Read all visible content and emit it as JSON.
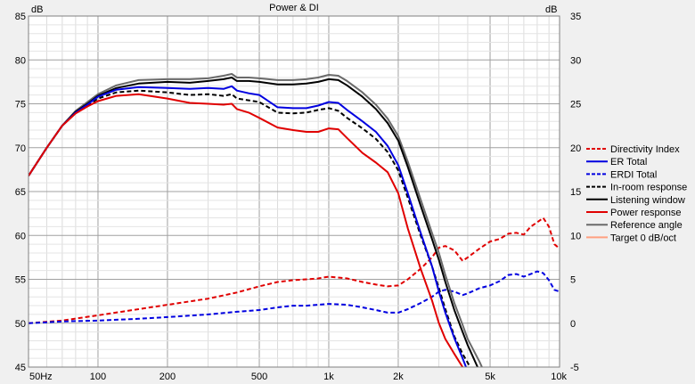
{
  "chart_data": {
    "type": "line",
    "title": "Power & DI",
    "left_unit": "dB",
    "right_unit": "dB",
    "x_scale": "log",
    "x_range": [
      50,
      10000
    ],
    "x_tick_labels": [
      {
        "x": 50,
        "label": "50Hz"
      },
      {
        "x": 100,
        "label": "100"
      },
      {
        "x": 200,
        "label": "200"
      },
      {
        "x": 500,
        "label": "500"
      },
      {
        "x": 1000,
        "label": "1k"
      },
      {
        "x": 2000,
        "label": "2k"
      },
      {
        "x": 5000,
        "label": "5k"
      },
      {
        "x": 10000,
        "label": "10k"
      }
    ],
    "y_left_range": [
      45,
      85
    ],
    "y_left_ticks": [
      45,
      50,
      55,
      60,
      65,
      70,
      75,
      80,
      85
    ],
    "y_right_range": [
      -5,
      35
    ],
    "y_right_ticks": [
      -5,
      0,
      5,
      10,
      15,
      20,
      25,
      30,
      35
    ],
    "grid": true,
    "legend_placement": "right",
    "series": [
      {
        "name": "Directivity Index",
        "axis": "right",
        "color": "#e00000",
        "dash": true,
        "x": [
          50,
          70,
          100,
          150,
          200,
          300,
          400,
          500,
          600,
          700,
          800,
          900,
          1000,
          1200,
          1400,
          1600,
          1800,
          2000,
          2200,
          2500,
          2800,
          3000,
          3200,
          3500,
          3800,
          4000,
          4500,
          5000,
          5500,
          6000,
          6500,
          7000,
          7500,
          8000,
          8500,
          9000,
          9500,
          10000
        ],
        "y": [
          0,
          0.3,
          0.9,
          1.6,
          2.1,
          2.8,
          3.5,
          4.2,
          4.7,
          4.9,
          5.0,
          5.1,
          5.3,
          5.1,
          4.7,
          4.4,
          4.2,
          4.3,
          5.0,
          6.2,
          7.5,
          8.6,
          8.8,
          8.3,
          7.1,
          7.5,
          8.5,
          9.3,
          9.6,
          10.2,
          10.3,
          10.1,
          11.0,
          11.5,
          12.0,
          11.0,
          9.0,
          8.5
        ]
      },
      {
        "name": "ER Total",
        "axis": "left",
        "color": "#0000e0",
        "dash": false,
        "x": [
          50,
          60,
          70,
          80,
          90,
          100,
          120,
          150,
          200,
          250,
          300,
          350,
          380,
          400,
          450,
          500,
          600,
          700,
          800,
          900,
          1000,
          1100,
          1200,
          1400,
          1600,
          1800,
          2000,
          2200,
          2500,
          2800,
          3000,
          3200,
          3500,
          3800,
          4000
        ],
        "y": [
          66.8,
          70.0,
          72.5,
          74.0,
          74.9,
          75.8,
          76.6,
          76.9,
          76.8,
          76.7,
          76.8,
          76.7,
          77.0,
          76.5,
          76.2,
          76.0,
          74.6,
          74.5,
          74.5,
          74.8,
          75.2,
          75.1,
          74.3,
          73.0,
          71.8,
          70.2,
          68.0,
          64.8,
          60.3,
          56.5,
          53.6,
          51.2,
          48.3,
          46.0,
          44.5
        ]
      },
      {
        "name": "ERDI Total",
        "axis": "right",
        "color": "#0000e0",
        "dash": true,
        "x": [
          50,
          70,
          100,
          150,
          200,
          300,
          400,
          500,
          600,
          700,
          800,
          900,
          1000,
          1200,
          1400,
          1600,
          1800,
          2000,
          2200,
          2500,
          2800,
          3000,
          3200,
          3500,
          3800,
          4000,
          4500,
          5000,
          5500,
          6000,
          6500,
          7000,
          7500,
          8000,
          8500,
          9000,
          9500,
          10000
        ],
        "y": [
          0,
          0.2,
          0.3,
          0.5,
          0.7,
          1.0,
          1.3,
          1.5,
          1.8,
          2.0,
          2.0,
          2.1,
          2.2,
          2.1,
          1.8,
          1.5,
          1.2,
          1.2,
          1.6,
          2.3,
          3.0,
          3.6,
          3.8,
          3.6,
          3.2,
          3.4,
          4.0,
          4.3,
          4.8,
          5.5,
          5.6,
          5.3,
          5.6,
          5.9,
          5.7,
          4.9,
          3.8,
          3.6
        ]
      },
      {
        "name": "In-room response",
        "axis": "left",
        "color": "#000000",
        "dash": true,
        "x": [
          50,
          60,
          70,
          80,
          90,
          100,
          120,
          150,
          200,
          250,
          300,
          350,
          380,
          400,
          450,
          500,
          600,
          700,
          800,
          900,
          1000,
          1100,
          1200,
          1400,
          1600,
          1800,
          2000,
          2200,
          2500,
          2800,
          3000,
          3200,
          3500,
          3800,
          4000,
          4300
        ],
        "y": [
          66.8,
          70.0,
          72.5,
          74.0,
          74.8,
          75.6,
          76.3,
          76.5,
          76.3,
          76.0,
          76.1,
          75.9,
          76.1,
          75.6,
          75.4,
          75.2,
          74.0,
          73.9,
          74.0,
          74.3,
          74.5,
          74.2,
          73.4,
          72.2,
          71.0,
          69.5,
          67.4,
          64.3,
          60.0,
          56.5,
          54.0,
          51.6,
          48.5,
          46.5,
          45.5,
          44.0
        ]
      },
      {
        "name": "Listening window",
        "axis": "left",
        "color": "#000000",
        "dash": false,
        "x": [
          50,
          60,
          70,
          80,
          90,
          100,
          120,
          150,
          200,
          250,
          300,
          350,
          380,
          400,
          450,
          500,
          600,
          700,
          800,
          900,
          1000,
          1100,
          1200,
          1400,
          1600,
          1800,
          2000,
          2200,
          2500,
          2800,
          3000,
          3200,
          3500,
          3800,
          4000,
          4500
        ],
        "y": [
          66.8,
          70.0,
          72.5,
          74.1,
          75.0,
          75.9,
          76.8,
          77.3,
          77.5,
          77.4,
          77.6,
          77.8,
          78.0,
          77.6,
          77.6,
          77.5,
          77.2,
          77.2,
          77.3,
          77.5,
          77.8,
          77.7,
          77.1,
          75.8,
          74.4,
          72.8,
          70.8,
          67.8,
          63.4,
          59.6,
          57.2,
          54.7,
          51.5,
          49.0,
          47.5,
          44.5
        ]
      },
      {
        "name": "Power response",
        "axis": "left",
        "color": "#e00000",
        "dash": false,
        "x": [
          50,
          60,
          70,
          80,
          90,
          100,
          120,
          150,
          200,
          250,
          300,
          350,
          380,
          400,
          450,
          500,
          600,
          700,
          800,
          900,
          1000,
          1100,
          1200,
          1400,
          1600,
          1800,
          2000,
          2200,
          2500,
          2800,
          3000,
          3200,
          3500,
          3800
        ],
        "y": [
          66.8,
          70.0,
          72.5,
          73.9,
          74.7,
          75.3,
          75.9,
          76.1,
          75.6,
          75.1,
          75.0,
          74.9,
          75.0,
          74.4,
          74.0,
          73.4,
          72.3,
          72.0,
          71.8,
          71.8,
          72.2,
          72.1,
          71.1,
          69.4,
          68.3,
          67.2,
          64.8,
          60.8,
          56.2,
          52.6,
          50.0,
          48.2,
          46.5,
          45.0
        ]
      },
      {
        "name": "Reference angle",
        "axis": "left",
        "color": "#6a6a6a",
        "dash": false,
        "x": [
          50,
          60,
          70,
          80,
          90,
          100,
          120,
          150,
          200,
          250,
          300,
          350,
          380,
          400,
          450,
          500,
          600,
          700,
          800,
          900,
          1000,
          1100,
          1200,
          1400,
          1600,
          1800,
          2000,
          2200,
          2500,
          2800,
          3000,
          3200,
          3500,
          3800,
          4000,
          4500,
          4700
        ],
        "y": [
          66.8,
          70.0,
          72.5,
          74.2,
          75.2,
          76.1,
          77.1,
          77.7,
          77.8,
          77.8,
          77.9,
          78.2,
          78.4,
          78.0,
          78.0,
          77.9,
          77.7,
          77.7,
          77.8,
          78.0,
          78.3,
          78.2,
          77.6,
          76.3,
          74.9,
          73.3,
          71.3,
          68.4,
          64.1,
          60.3,
          58.0,
          55.5,
          52.3,
          49.8,
          48.2,
          45.6,
          44.5
        ]
      },
      {
        "name": "Target 0 dB/oct",
        "axis": "left",
        "color": "#ffa080",
        "dash": false,
        "x": [],
        "y": []
      }
    ]
  }
}
